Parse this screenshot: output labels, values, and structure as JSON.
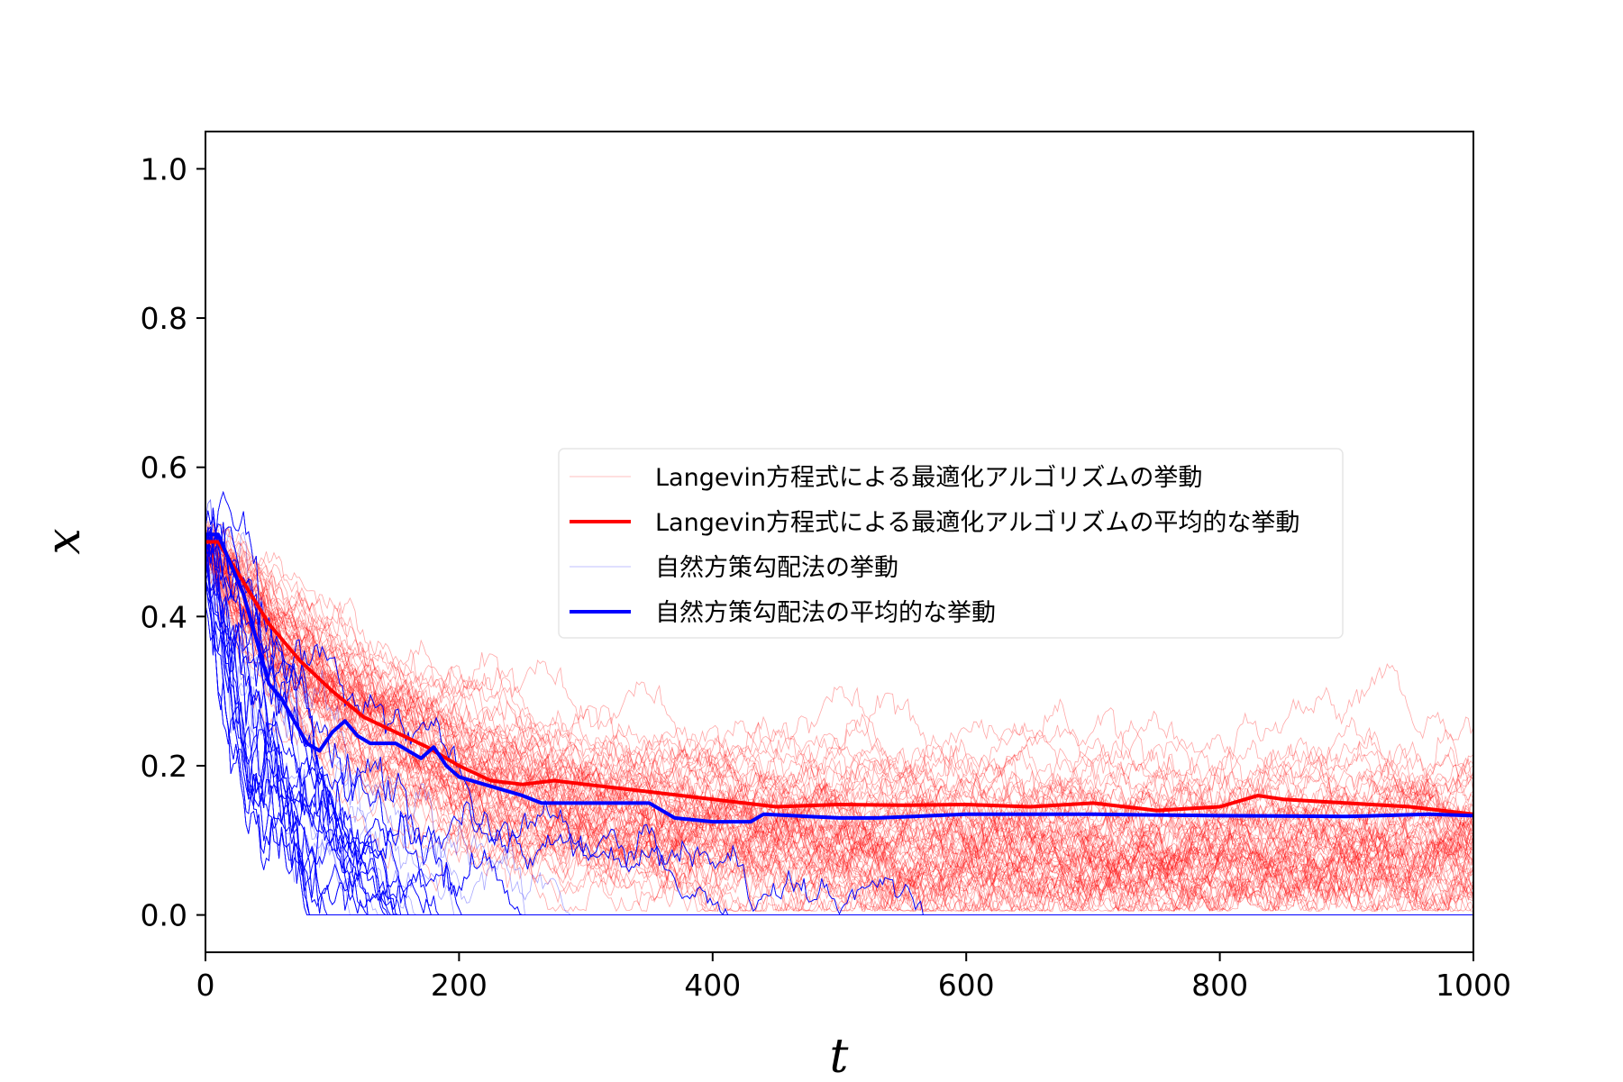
{
  "chart_data": {
    "type": "line",
    "title": "",
    "xlabel": "t",
    "ylabel": "x",
    "xlim": [
      0,
      1000
    ],
    "ylim": [
      -0.05,
      1.05
    ],
    "x_ticks": [
      0,
      200,
      400,
      600,
      800,
      1000
    ],
    "x_tick_labels": [
      "0",
      "200",
      "400",
      "600",
      "800",
      "1000"
    ],
    "y_ticks": [
      0.0,
      0.2,
      0.4,
      0.6,
      0.8,
      1.0
    ],
    "y_tick_labels": [
      "0.0",
      "0.2",
      "0.4",
      "0.6",
      "0.8",
      "1.0"
    ],
    "grid": false,
    "legend_position": "center-right",
    "colors": {
      "langevin": "#ff0000",
      "npg": "#0000ff"
    },
    "legend": [
      {
        "label": "Langevin方程式による最適化アルゴリズムの挙動",
        "color": "#ff0000",
        "style": "thin"
      },
      {
        "label": "Langevin方程式による最適化アルゴリズムの平均的な挙動",
        "color": "#ff0000",
        "style": "thick"
      },
      {
        "label": "自然方策勾配法の挙動",
        "color": "#0000ff",
        "style": "thin"
      },
      {
        "label": "自然方策勾配法の平均的な挙動",
        "color": "#0000ff",
        "style": "thick"
      }
    ],
    "series": [
      {
        "name": "Langevin方程式による最適化アルゴリズムの平均的な挙動",
        "color": "#ff0000",
        "x": [
          0,
          10,
          25,
          50,
          75,
          100,
          125,
          150,
          175,
          200,
          225,
          250,
          275,
          300,
          350,
          400,
          450,
          500,
          550,
          600,
          650,
          700,
          750,
          800,
          830,
          850,
          900,
          950,
          1000
        ],
        "y": [
          0.5,
          0.5,
          0.46,
          0.39,
          0.34,
          0.3,
          0.265,
          0.245,
          0.225,
          0.2,
          0.18,
          0.175,
          0.18,
          0.175,
          0.165,
          0.155,
          0.145,
          0.148,
          0.147,
          0.148,
          0.145,
          0.15,
          0.14,
          0.145,
          0.16,
          0.155,
          0.15,
          0.145,
          0.135
        ]
      },
      {
        "name": "自然方策勾配法の平均的な挙動",
        "color": "#0000ff",
        "x": [
          0,
          10,
          20,
          30,
          40,
          50,
          60,
          70,
          80,
          90,
          100,
          110,
          120,
          130,
          150,
          170,
          180,
          190,
          200,
          220,
          250,
          265,
          300,
          350,
          370,
          400,
          430,
          440,
          500,
          530,
          600,
          700,
          800,
          900,
          965,
          1000
        ],
        "y": [
          0.51,
          0.51,
          0.47,
          0.43,
          0.37,
          0.31,
          0.29,
          0.26,
          0.23,
          0.22,
          0.245,
          0.26,
          0.24,
          0.23,
          0.23,
          0.21,
          0.225,
          0.2,
          0.185,
          0.175,
          0.16,
          0.15,
          0.15,
          0.15,
          0.13,
          0.125,
          0.125,
          0.135,
          0.13,
          0.13,
          0.135,
          0.135,
          0.133,
          0.132,
          0.135,
          0.133
        ]
      }
    ]
  }
}
